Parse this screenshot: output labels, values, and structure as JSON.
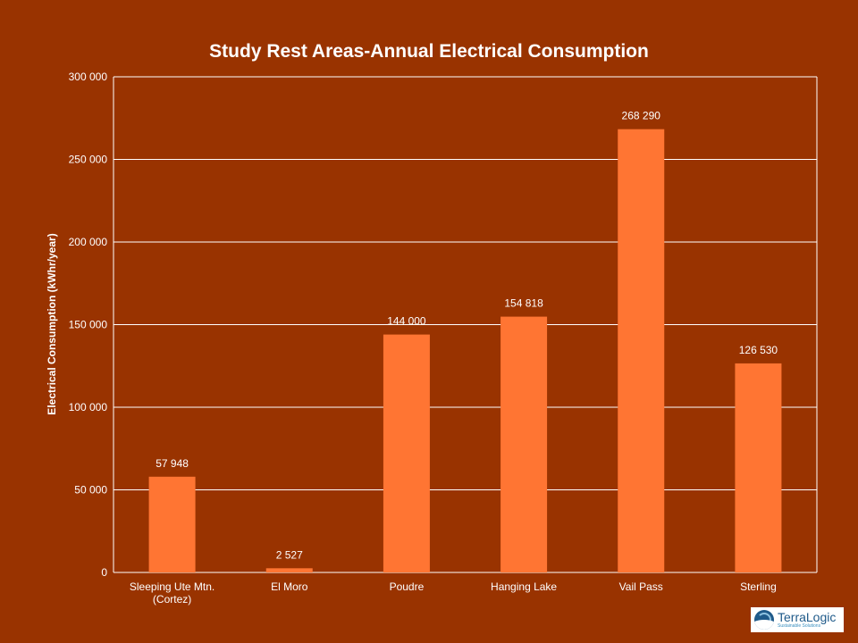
{
  "chart_data": {
    "type": "bar",
    "title": "Study Rest Areas-Annual Electrical Consumption",
    "ylabel": "Electrical Consumption  (kWhr/year)",
    "xlabel": "",
    "ylim": [
      0,
      300000
    ],
    "y_ticks": [
      {
        "value": 0,
        "label": "0"
      },
      {
        "value": 50000,
        "label": "50 000"
      },
      {
        "value": 100000,
        "label": "100 000"
      },
      {
        "value": 150000,
        "label": "150 000"
      },
      {
        "value": 200000,
        "label": "200 000"
      },
      {
        "value": 250000,
        "label": "250 000"
      },
      {
        "value": 300000,
        "label": "300 000"
      }
    ],
    "categories": [
      [
        "Sleeping Ute Mtn.",
        "(Cortez)"
      ],
      [
        "El Moro"
      ],
      [
        "Poudre"
      ],
      [
        "Hanging Lake"
      ],
      [
        "Vail Pass"
      ],
      [
        "Sterling"
      ]
    ],
    "values": [
      57948,
      2527,
      144000,
      154818,
      268290,
      126530
    ],
    "data_labels": [
      "57 948",
      "2 527",
      "144 000",
      "154 818",
      "268 290",
      "126 530"
    ],
    "grid": true,
    "legend": "none",
    "colors": {
      "background": "#993300",
      "bar": "#ff7533",
      "gridline": "#ffffff",
      "text": "#ffffff"
    }
  },
  "logo": {
    "name": "TerraLogic",
    "tagline": "Sustainable Solutions"
  }
}
